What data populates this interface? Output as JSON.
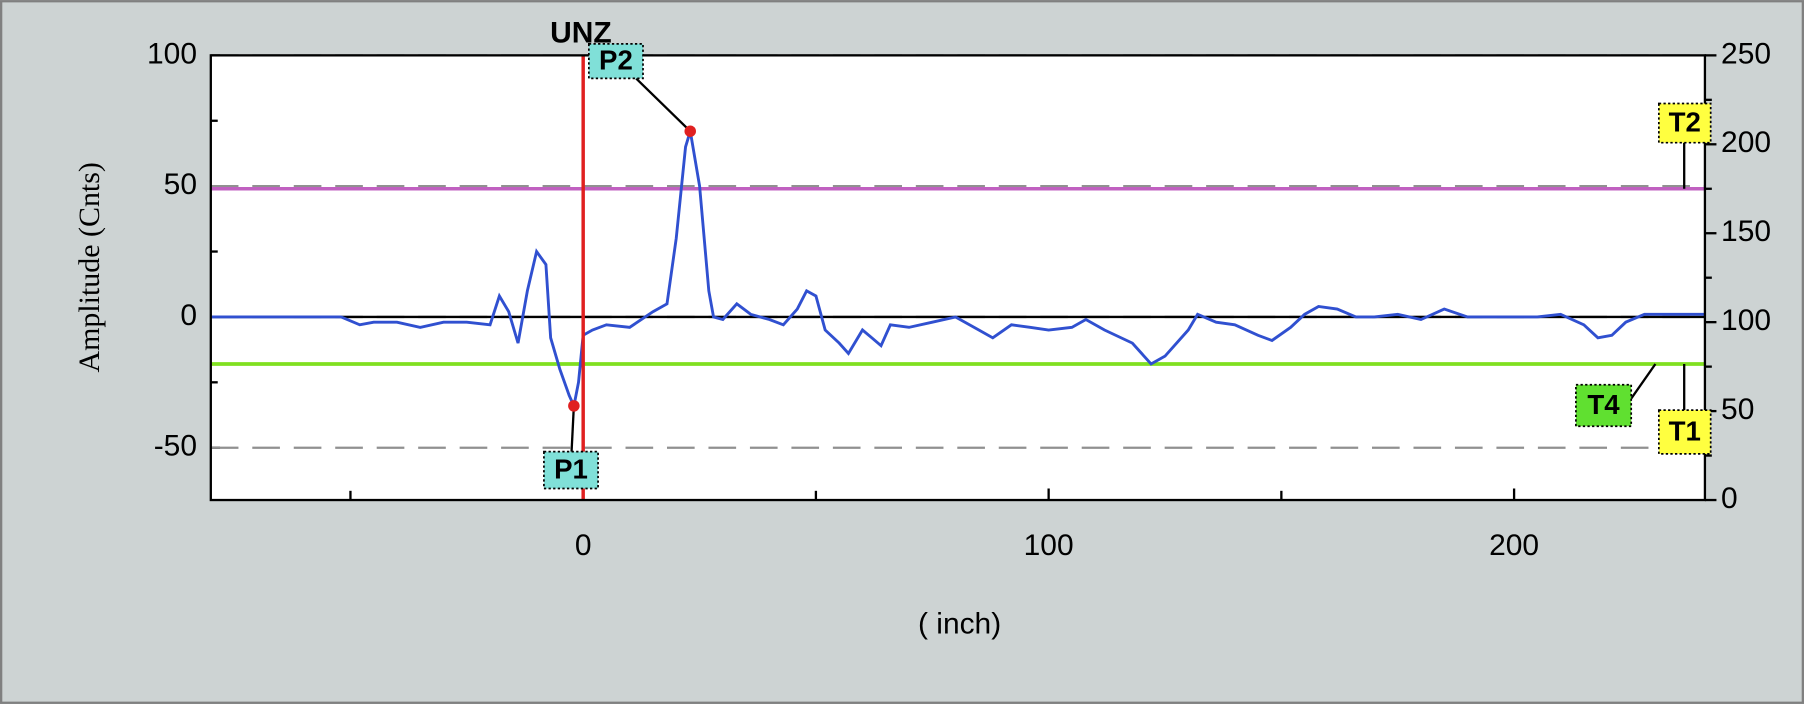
{
  "chart_data": {
    "type": "line",
    "y_label": "Amplitude (Cnts)",
    "x_label": "( inch)",
    "x": [
      -80,
      -52,
      -48,
      -45,
      -40,
      -35,
      -30,
      -25,
      -20,
      -18,
      -16,
      -14,
      -12,
      -10,
      -8,
      -7,
      -5,
      -3,
      -2,
      -1,
      0,
      2,
      5,
      10,
      15,
      18,
      20,
      22,
      23,
      25,
      27,
      28,
      30,
      33,
      36,
      40,
      43,
      46,
      48,
      50,
      52,
      55,
      57,
      60,
      62,
      64,
      66,
      70,
      75,
      80,
      85,
      88,
      92,
      96,
      100,
      105,
      108,
      112,
      118,
      122,
      125,
      130,
      132,
      136,
      140,
      145,
      148,
      152,
      155,
      158,
      162,
      166,
      170,
      175,
      180,
      185,
      190,
      195,
      200,
      205,
      210,
      215,
      218,
      221,
      224,
      228,
      235,
      241
    ],
    "values": [
      0,
      0,
      -3,
      -2,
      -2,
      -4,
      -2,
      -2,
      -3,
      8,
      2,
      -10,
      10,
      25,
      20,
      -8,
      -20,
      -30,
      -34,
      -25,
      -7,
      -5,
      -3,
      -4,
      2,
      5,
      30,
      65,
      71,
      50,
      10,
      0,
      -1,
      5,
      1,
      -1,
      -3,
      3,
      10,
      8,
      -5,
      -10,
      -14,
      -5,
      -8,
      -11,
      -3,
      -4,
      -2,
      0,
      -5,
      -8,
      -3,
      -4,
      -5,
      -4,
      -1,
      -5,
      -10,
      -18,
      -15,
      -5,
      1,
      -2,
      -3,
      -7,
      -9,
      -4,
      1,
      4,
      3,
      0,
      0,
      1,
      -1,
      3,
      0,
      0,
      0,
      0,
      1,
      -3,
      -8,
      -7,
      -2,
      1,
      1,
      1
    ],
    "color": "#3050d0",
    "xlim": [
      -80,
      241
    ],
    "xticks": [
      0,
      100,
      200
    ],
    "ylim": [
      -70,
      100
    ],
    "yticks": [
      -50,
      0,
      50,
      100
    ],
    "y2lim": [
      0,
      250
    ],
    "y2ticks": [
      0,
      50,
      100,
      150,
      200,
      250
    ],
    "grid": true,
    "cursor": {
      "label": "UNZ",
      "x": 0,
      "color": "#e02020"
    },
    "markers": [
      {
        "label": "P1",
        "x": -2,
        "y": -34
      },
      {
        "label": "P2",
        "x": 23,
        "y": 71
      }
    ],
    "thresholds": [
      {
        "label": "T2",
        "value": 49,
        "color": "#c060c0"
      },
      {
        "label": "T4",
        "value": -18,
        "color": "#80e020"
      },
      {
        "label": "T1",
        "value": -18,
        "color": "#80e020"
      }
    ]
  }
}
